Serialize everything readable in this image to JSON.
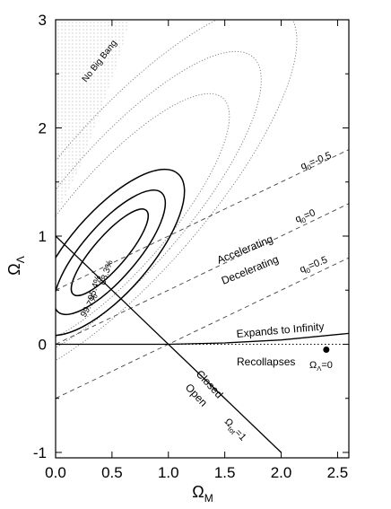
{
  "chart_data": {
    "type": "contour",
    "xlabel": "Ω",
    "xlabel_sub": "M",
    "ylabel": "Ω",
    "ylabel_sub": "Λ",
    "xlim": [
      0,
      2.6
    ],
    "ylim": [
      -1.05,
      3.0
    ],
    "xticks": [
      "0.0",
      "0.5",
      "1.0",
      "1.5",
      "2.0",
      "2.5"
    ],
    "xtick_values": [
      0,
      0.5,
      1.0,
      1.5,
      2.0,
      2.5
    ],
    "yticks": [
      "-1",
      "0",
      "1",
      "2",
      "3"
    ],
    "ytick_values": [
      -1,
      0,
      1,
      2,
      3
    ],
    "grid": false,
    "regions": {
      "no_big_bang_label": "No Big Bang",
      "accelerating_label": "Accelerating",
      "decelerating_label": "Decelerating",
      "expands_label": "Expands to Infinity",
      "recollapses_label": "Recollapses",
      "closed_label": "Closed",
      "open_label": "Open"
    },
    "lines": [
      {
        "label": "q0=-0.5",
        "style": "dashed",
        "note": "ΩΛ = Ω_M/2 + 0.5",
        "x": [
          0,
          2.6
        ],
        "y": [
          0.5,
          1.8
        ]
      },
      {
        "label": "q0=0",
        "style": "dashed",
        "note": "ΩΛ = Ω_M/2",
        "x": [
          0,
          2.6
        ],
        "y": [
          0.0,
          1.3
        ]
      },
      {
        "label": "q0=0.5",
        "style": "dashed",
        "note": "ΩΛ = Ω_M/2 − 0.5",
        "x": [
          0,
          2.6
        ],
        "y": [
          -0.5,
          0.8
        ]
      },
      {
        "label": "Ωtot=1",
        "style": "solid",
        "note": "flat",
        "x": [
          0,
          2.0
        ],
        "y": [
          1.0,
          -1.0
        ]
      },
      {
        "label": "",
        "style": "solid",
        "note": "expand/recollapse boundary",
        "x": [
          0,
          1.0,
          1.5,
          2.0,
          2.6
        ],
        "y": [
          0,
          0,
          0.012,
          0.04,
          0.1
        ]
      },
      {
        "label": "ΩΛ=0",
        "style": "dotted",
        "note": "",
        "x": [
          0,
          2.6
        ],
        "y": [
          0,
          0
        ]
      }
    ],
    "no_big_bang_boundary": {
      "x": [
        0,
        0.2,
        0.45,
        0.55,
        0.62,
        0.65
      ],
      "y": [
        1.18,
        1.6,
        2.3,
        2.6,
        2.85,
        3.0
      ]
    },
    "confidence_contours": {
      "center": [
        0.48,
        0.85
      ],
      "levels": [
        {
          "label": "68.3%",
          "x": [
            0.25,
            0.48,
            0.72
          ],
          "y": [
            0.55,
            0.85,
            1.3
          ]
        },
        {
          "label": "95.4%",
          "x": [
            0.17,
            0.48,
            0.81
          ],
          "y": [
            0.38,
            0.85,
            1.4
          ]
        },
        {
          "label": "99.7%",
          "x": [
            0.02,
            0.48,
            1.0
          ],
          "y": [
            0.1,
            0.85,
            1.55
          ]
        }
      ],
      "dotted_contours_note": "larger dotted confidence contours extending to ~ΩM 1.6, ΩΛ 2.5"
    },
    "labels": {
      "q_minus": {
        "q": "q",
        "sub": "0",
        "rest": "=-0.5"
      },
      "q_zero": {
        "q": "q",
        "sub": "0",
        "rest": "=0"
      },
      "q_plus": {
        "q": "q",
        "sub": "0",
        "rest": "=0.5"
      },
      "omega_tot": {
        "q": "Ω",
        "sub": "tot",
        "rest": "=1"
      },
      "omega_lambda0": {
        "q": "Ω",
        "sub": "Λ",
        "rest": "=0"
      },
      "c68": "68.3%",
      "c95": "95.4%",
      "c99": "99.7%"
    }
  }
}
